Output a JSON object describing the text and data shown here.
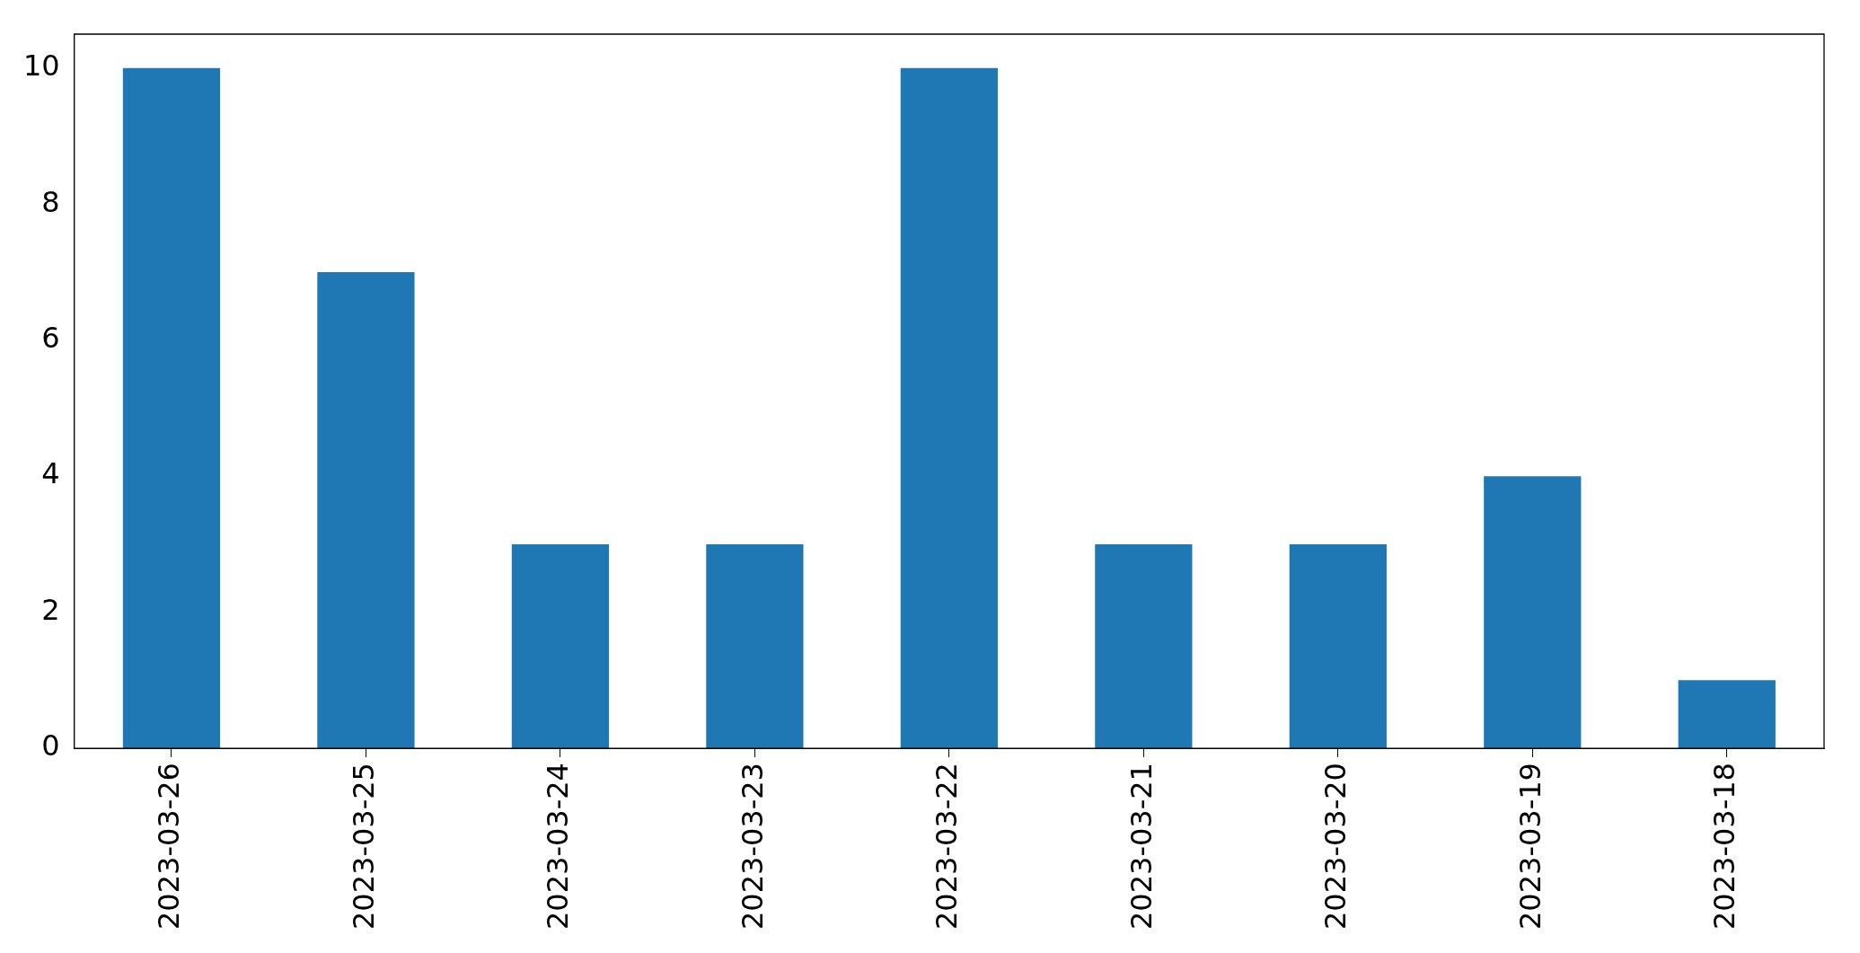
{
  "chart_data": {
    "type": "bar",
    "categories": [
      "2023-03-26",
      "2023-03-25",
      "2023-03-24",
      "2023-03-23",
      "2023-03-22",
      "2023-03-21",
      "2023-03-20",
      "2023-03-19",
      "2023-03-18"
    ],
    "values": [
      10,
      7,
      3,
      3,
      10,
      3,
      3,
      4,
      1
    ],
    "color": "#1f77b4",
    "ylim": [
      0,
      10.5
    ],
    "yticks": [
      0,
      2,
      4,
      6,
      8,
      10
    ],
    "grid": false,
    "legend": false
  }
}
